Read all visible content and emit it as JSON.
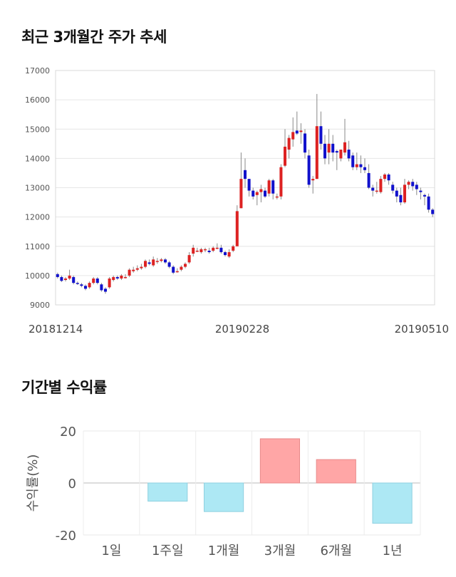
{
  "sections": {
    "price_title": "최근 3개월간 주가 추세",
    "returns_title": "기간별 수익률"
  },
  "chart_data": [
    {
      "type": "candlestick",
      "ylim": [
        9000,
        17000
      ],
      "y_ticks": [
        "17000",
        "16000",
        "15000",
        "14000",
        "13000",
        "12000",
        "11000",
        "10000",
        "9000"
      ],
      "x_tick_labels": [
        "20181214",
        "20190228",
        "20190510"
      ],
      "grid": true,
      "colors": {
        "up": "#dd2222",
        "down": "#1111cc",
        "wick": "#888888"
      },
      "candles": [
        [
          10050,
          9950,
          10100,
          9900
        ],
        [
          9950,
          9820,
          10000,
          9780
        ],
        [
          9850,
          9900,
          9950,
          9800
        ],
        [
          9900,
          10000,
          10200,
          9850
        ],
        [
          9950,
          9750,
          10000,
          9700
        ],
        [
          9750,
          9720,
          9800,
          9680
        ],
        [
          9700,
          9650,
          9750,
          9600
        ],
        [
          9650,
          9550,
          9700,
          9500
        ],
        [
          9600,
          9750,
          9800,
          9550
        ],
        [
          9750,
          9900,
          9950,
          9700
        ],
        [
          9900,
          9750,
          9950,
          9700
        ],
        [
          9700,
          9500,
          9750,
          9450
        ],
        [
          9550,
          9450,
          9600,
          9380
        ],
        [
          9600,
          9900,
          9950,
          9550
        ],
        [
          9850,
          9950,
          10000,
          9800
        ],
        [
          9950,
          9900,
          10000,
          9850
        ],
        [
          9900,
          10000,
          10050,
          9850
        ],
        [
          9950,
          9950,
          10050,
          9900
        ],
        [
          10000,
          10200,
          10250,
          9950
        ],
        [
          10150,
          10200,
          10300,
          10100
        ],
        [
          10200,
          10250,
          10350,
          10150
        ],
        [
          10250,
          10300,
          10400,
          10200
        ],
        [
          10300,
          10500,
          10550,
          10250
        ],
        [
          10450,
          10400,
          10550,
          10350
        ],
        [
          10350,
          10550,
          10650,
          10300
        ],
        [
          10500,
          10500,
          10600,
          10400
        ],
        [
          10500,
          10550,
          10600,
          10450
        ],
        [
          10550,
          10450,
          10600,
          10400
        ],
        [
          10450,
          10300,
          10500,
          10250
        ],
        [
          10300,
          10100,
          10350,
          10050
        ],
        [
          10150,
          10150,
          10250,
          10100
        ],
        [
          10200,
          10300,
          10350,
          10150
        ],
        [
          10300,
          10400,
          10450,
          10250
        ],
        [
          10450,
          10700,
          10800,
          10400
        ],
        [
          10750,
          10950,
          11050,
          10650
        ],
        [
          10850,
          10850,
          10950,
          10800
        ],
        [
          10800,
          10900,
          10950,
          10750
        ],
        [
          10900,
          10900,
          10950,
          10800
        ],
        [
          10850,
          10800,
          10950,
          10750
        ],
        [
          10850,
          10950,
          11000,
          10800
        ],
        [
          10950,
          10950,
          11100,
          10900
        ],
        [
          10950,
          10800,
          11050,
          10750
        ],
        [
          10800,
          10700,
          10850,
          10650
        ],
        [
          10650,
          10800,
          10900,
          10600
        ],
        [
          10850,
          11000,
          11050,
          10800
        ],
        [
          11000,
          12200,
          12400,
          11400
        ],
        [
          12300,
          13300,
          14200,
          12300
        ],
        [
          13600,
          13300,
          14000,
          13000
        ],
        [
          13300,
          12900,
          13300,
          12700
        ],
        [
          12900,
          12700,
          13000,
          12600
        ],
        [
          12750,
          12850,
          12900,
          12400
        ],
        [
          12850,
          12950,
          13100,
          12500
        ],
        [
          12900,
          12700,
          13000,
          12650
        ],
        [
          12800,
          13250,
          13300,
          12700
        ],
        [
          13250,
          12800,
          13300,
          12600
        ],
        [
          12700,
          12700,
          12800,
          12600
        ],
        [
          12700,
          13700,
          13800,
          12600
        ],
        [
          13750,
          14400,
          15000,
          13700
        ],
        [
          14300,
          14700,
          14800,
          14000
        ],
        [
          14650,
          14900,
          15400,
          14400
        ],
        [
          14950,
          14850,
          15600,
          14800
        ],
        [
          14900,
          14950,
          15200,
          14500
        ],
        [
          14850,
          14200,
          15000,
          14000
        ],
        [
          14100,
          13100,
          14300,
          13000
        ],
        [
          13250,
          13300,
          13400,
          12800
        ],
        [
          13300,
          15100,
          16200,
          13300
        ],
        [
          15100,
          14500,
          15600,
          14300
        ],
        [
          14500,
          14000,
          14800,
          13800
        ],
        [
          14200,
          14500,
          15000,
          13800
        ],
        [
          14500,
          14200,
          14800,
          13900
        ],
        [
          14250,
          14200,
          14300,
          13600
        ],
        [
          14000,
          14300,
          14300,
          13900
        ],
        [
          14200,
          14550,
          15350,
          14100
        ],
        [
          14300,
          14000,
          14600,
          13900
        ],
        [
          14100,
          13700,
          14200,
          13600
        ],
        [
          13700,
          13800,
          14200,
          13600
        ],
        [
          13800,
          13700,
          14100,
          13500
        ],
        [
          13700,
          13600,
          14000,
          13500
        ],
        [
          13500,
          13000,
          13800,
          12950
        ],
        [
          13000,
          12900,
          13100,
          12700
        ],
        [
          12900,
          12900,
          13200,
          12800
        ],
        [
          12850,
          13300,
          13400,
          12800
        ],
        [
          13300,
          13450,
          13500,
          13200
        ],
        [
          13450,
          13250,
          13500,
          13100
        ],
        [
          13100,
          12900,
          13200,
          12800
        ],
        [
          12900,
          12700,
          13000,
          12500
        ],
        [
          12750,
          12500,
          13000,
          12400
        ],
        [
          12500,
          13100,
          13300,
          12450
        ],
        [
          13100,
          13200,
          13250,
          12950
        ],
        [
          13200,
          13050,
          13300,
          12900
        ],
        [
          13100,
          12950,
          13200,
          12750
        ],
        [
          12900,
          12850,
          13000,
          12600
        ],
        [
          12750,
          12700,
          12800,
          12400
        ],
        [
          12700,
          12250,
          12800,
          12150
        ],
        [
          12250,
          12100,
          12300,
          12000
        ]
      ]
    },
    {
      "type": "bar",
      "categories": [
        "1일",
        "1주일",
        "1개월",
        "3개월",
        "6개월",
        "1년"
      ],
      "values": [
        0,
        -7,
        -11,
        17,
        9,
        -15.5
      ],
      "ylim": [
        -20,
        20
      ],
      "y_ticks": [
        "20",
        "0",
        "-20"
      ],
      "ylabel": "수익률(%)",
      "grid": true,
      "colors": {
        "positive_fill": "#ffa6a6",
        "positive_stroke": "#e88a8a",
        "negative_fill": "#ade8f4",
        "negative_stroke": "#8fd0e0"
      }
    }
  ]
}
